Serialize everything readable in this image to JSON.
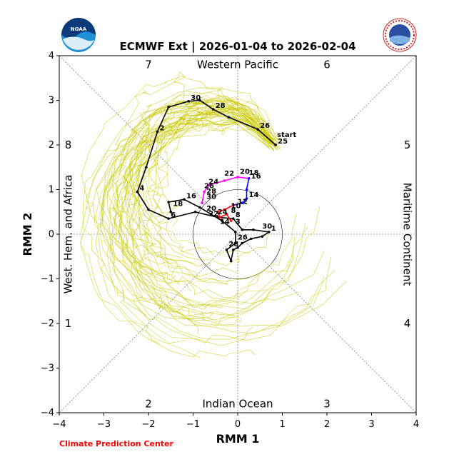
{
  "chart_data": {
    "type": "scatter",
    "title": "ECMWF Ext | 2026-01-04 to 2026-02-04",
    "xlabel": "RMM 1",
    "ylabel": "RMM 2",
    "xlim": [
      -4,
      4
    ],
    "ylim": [
      -4,
      4
    ],
    "xticks": [
      "−4",
      "−3",
      "−2",
      "−1",
      "0",
      "1",
      "2",
      "3",
      "4"
    ],
    "yticks": [
      "−4",
      "−3",
      "−2",
      "−1",
      "0",
      "1",
      "2",
      "3",
      "4"
    ],
    "phases": [
      "1",
      "2",
      "3",
      "4",
      "5",
      "6",
      "7",
      "8"
    ],
    "regions": {
      "top": "Western Pacific",
      "bottom": "Indian Ocean",
      "left": "West. Hem. and Africa",
      "right": "Maritime Continent"
    },
    "unit_circle_radius": 1,
    "start_label": "start",
    "credit": "Climate Prediction Center",
    "logos": [
      "noaa-logo",
      "nws-logo"
    ],
    "ensemble_color": "#c8c800",
    "series": [
      {
        "color": "#000000",
        "points": [
          [
            0.85,
            2.0
          ],
          [
            0.45,
            2.35
          ],
          [
            -0.2,
            2.62
          ],
          [
            -0.55,
            2.8
          ],
          [
            -0.85,
            3.0
          ],
          [
            -1.1,
            2.98
          ],
          [
            -1.55,
            2.85
          ],
          [
            -1.8,
            2.3
          ],
          [
            -2.05,
            1.5
          ],
          [
            -2.25,
            0.95
          ],
          [
            -2.0,
            0.55
          ],
          [
            -1.55,
            0.35
          ],
          [
            -0.95,
            0.5
          ],
          [
            -0.45,
            0.38
          ],
          [
            -0.1,
            0.35
          ],
          [
            0.1,
            0.1
          ],
          [
            0.35,
            0.1
          ],
          [
            0.7,
            0.05
          ],
          [
            0.55,
            -0.05
          ],
          [
            0.3,
            -0.1
          ],
          [
            0.1,
            -0.2
          ],
          [
            0.0,
            -0.3
          ],
          [
            -0.1,
            -0.35
          ],
          [
            -0.15,
            -0.6
          ],
          [
            -0.25,
            -0.35
          ],
          [
            -0.05,
            -0.2
          ],
          [
            -0.05,
            0.05
          ],
          [
            -0.35,
            0.3
          ],
          [
            -0.6,
            0.45
          ],
          [
            -0.85,
            0.6
          ],
          [
            -1.2,
            0.78
          ],
          [
            -1.55,
            0.72
          ],
          [
            -1.5,
            0.5
          ]
        ],
        "labels": [
          {
            "text": "25",
            "at": [
              0.85,
              2.0
            ]
          },
          {
            "text": "26",
            "at": [
              0.45,
              2.35
            ]
          },
          {
            "text": "28",
            "at": [
              -0.55,
              2.8
            ]
          },
          {
            "text": "30",
            "at": [
              -1.1,
              2.98
            ]
          },
          {
            "text": "2",
            "at": [
              -1.8,
              2.3
            ]
          },
          {
            "text": "4",
            "at": [
              -2.25,
              0.95
            ]
          },
          {
            "text": "6",
            "at": [
              -1.55,
              0.35
            ]
          },
          {
            "text": "8",
            "at": [
              -0.1,
              0.35
            ]
          },
          {
            "text": "10",
            "at": [
              -0.2,
              0.55
            ]
          },
          {
            "text": "12",
            "at": [
              -0.05,
              0.65
            ]
          },
          {
            "text": "30",
            "at": [
              0.5,
              0.1
            ]
          },
          {
            "text": "1",
            "at": [
              0.7,
              0.05
            ]
          },
          {
            "text": "3",
            "at": [
              -0.1,
              0.2
            ]
          },
          {
            "text": "14",
            "at": [
              -0.45,
              0.2
            ]
          },
          {
            "text": "16",
            "at": [
              -1.2,
              0.78
            ]
          },
          {
            "text": "18",
            "at": [
              -1.5,
              0.6
            ]
          },
          {
            "text": "20",
            "at": [
              -0.75,
              0.5
            ]
          },
          {
            "text": "22",
            "at": [
              -0.7,
              0.38
            ]
          },
          {
            "text": "24",
            "at": [
              -0.5,
              0.42
            ]
          },
          {
            "text": "26",
            "at": [
              -0.05,
              -0.15
            ]
          },
          {
            "text": "28",
            "at": [
              -0.25,
              -0.3
            ]
          }
        ]
      },
      {
        "color": "#ff00ff",
        "points": [
          [
            -0.8,
            0.7
          ],
          [
            -0.75,
            0.95
          ],
          [
            -0.65,
            1.1
          ],
          [
            -0.3,
            1.2
          ],
          [
            0.0,
            1.28
          ],
          [
            0.25,
            1.25
          ]
        ],
        "labels": [
          {
            "text": "22",
            "at": [
              -0.35,
              1.28
            ]
          },
          {
            "text": "24",
            "at": [
              -0.7,
              1.1
            ]
          },
          {
            "text": "26",
            "at": [
              -0.8,
              1.0
            ]
          },
          {
            "text": "28",
            "at": [
              -0.75,
              0.88
            ]
          },
          {
            "text": "30",
            "at": [
              -0.75,
              0.76
            ]
          },
          {
            "text": "20",
            "at": [
              0.0,
              1.32
            ]
          },
          {
            "text": "18",
            "at": [
              0.2,
              1.3
            ]
          }
        ]
      },
      {
        "color": "#0000ff",
        "points": [
          [
            0.25,
            1.25
          ],
          [
            0.2,
            1.0
          ],
          [
            0.2,
            0.8
          ],
          [
            0.1,
            0.7
          ],
          [
            -0.1,
            0.65
          ]
        ],
        "labels": [
          {
            "text": "16",
            "at": [
              0.25,
              1.22
            ]
          },
          {
            "text": "14",
            "at": [
              0.2,
              0.8
            ]
          }
        ]
      },
      {
        "color": "#ff0000",
        "points": [
          [
            -0.1,
            0.65
          ],
          [
            -0.3,
            0.55
          ],
          [
            -0.45,
            0.5
          ],
          [
            -0.4,
            0.38
          ],
          [
            -0.25,
            0.45
          ],
          [
            -0.15,
            0.3
          ]
        ],
        "labels": [
          {
            "text": "8",
            "at": [
              -0.2,
              0.45
            ]
          }
        ]
      }
    ]
  }
}
